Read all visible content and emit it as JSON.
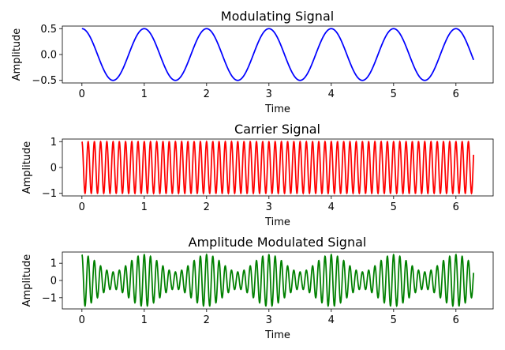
{
  "chart_data": [
    {
      "type": "line",
      "title": "Modulating Signal",
      "xlabel": "Time",
      "ylabel": "Amplitude",
      "xlim": [
        -0.3142,
        6.5973
      ],
      "ylim": [
        -0.55,
        0.55
      ],
      "xticks": [
        0,
        1,
        2,
        3,
        4,
        5,
        6
      ],
      "yticks": [
        -0.5,
        0.0,
        0.5
      ],
      "ytick_labels": [
        "−0.5",
        "0.0",
        "0.5"
      ],
      "grid": false,
      "series": [
        {
          "color": "#0000ff",
          "function": "0.5*cos(2*pi*1*t)",
          "t_range": [
            0,
            6.2832
          ]
        }
      ]
    },
    {
      "type": "line",
      "title": "Carrier Signal",
      "xlabel": "Time",
      "ylabel": "Amplitude",
      "xlim": [
        -0.3142,
        6.5973
      ],
      "ylim": [
        -1.1,
        1.1
      ],
      "xticks": [
        0,
        1,
        2,
        3,
        4,
        5,
        6
      ],
      "yticks": [
        -1,
        0,
        1
      ],
      "ytick_labels": [
        "−1",
        "0",
        "1"
      ],
      "grid": false,
      "series": [
        {
          "color": "#ff0000",
          "function": "cos(2*pi*10*t)",
          "t_range": [
            0,
            6.2832
          ]
        }
      ]
    },
    {
      "type": "line",
      "title": "Amplitude Modulated Signal",
      "xlabel": "Time",
      "ylabel": "Amplitude",
      "xlim": [
        -0.3142,
        6.5973
      ],
      "ylim": [
        -1.65,
        1.65
      ],
      "xticks": [
        0,
        1,
        2,
        3,
        4,
        5,
        6
      ],
      "yticks": [
        -1,
        0,
        1
      ],
      "ytick_labels": [
        "−1",
        "0",
        "1"
      ],
      "grid": false,
      "series": [
        {
          "color": "#008000",
          "function": "(1+0.5*cos(2*pi*1*t))*cos(2*pi*10*t)",
          "t_range": [
            0,
            6.2832
          ]
        }
      ]
    }
  ]
}
